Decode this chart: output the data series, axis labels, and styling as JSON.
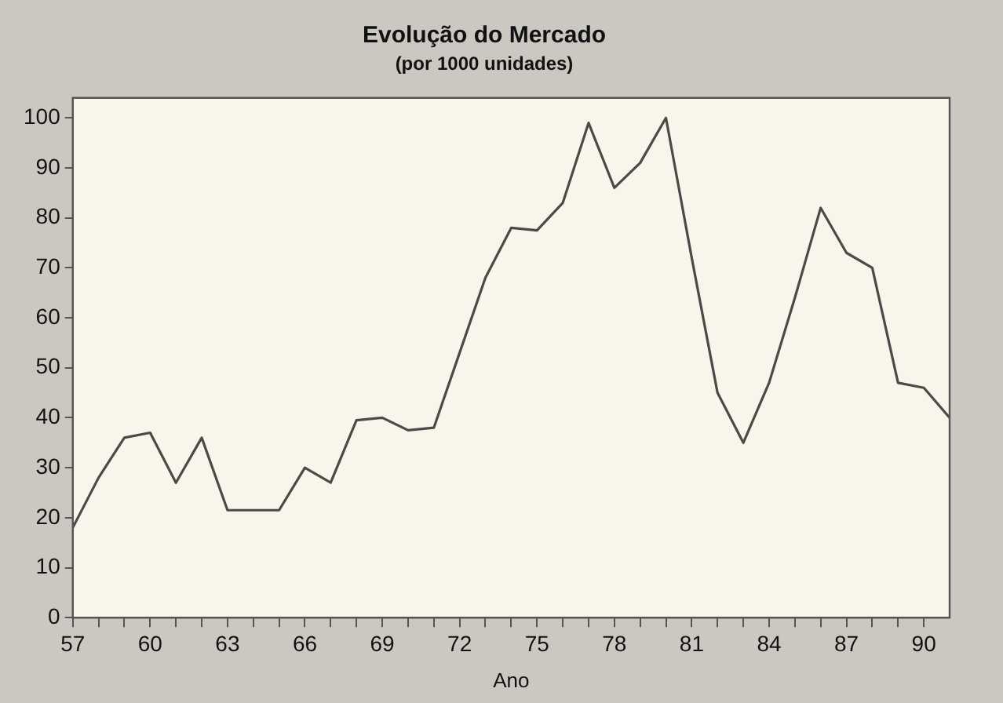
{
  "chart_data": {
    "type": "line",
    "title": "Evolução do Mercado",
    "subtitle": "(por 1000 unidades)",
    "xlabel": "Ano",
    "x": [
      57,
      58,
      59,
      60,
      61,
      62,
      63,
      64,
      65,
      66,
      67,
      68,
      69,
      70,
      71,
      72,
      73,
      74,
      75,
      76,
      77,
      78,
      79,
      80,
      81,
      82,
      83,
      84,
      85,
      86,
      87,
      88,
      89,
      90,
      91
    ],
    "series": [
      {
        "color": "#4a4a48",
        "values": [
          18,
          28,
          36,
          37,
          27,
          36,
          21.5,
          21.5,
          21.5,
          30,
          27,
          39.5,
          40,
          37.5,
          38,
          53,
          68,
          78,
          77.5,
          83,
          99,
          86,
          91,
          100,
          72,
          45,
          35,
          47,
          64,
          82,
          73,
          70,
          47,
          46,
          40
        ]
      }
    ],
    "xlim": [
      57,
      91
    ],
    "ylim": [
      0,
      104
    ],
    "xticks": [
      57,
      {
        "value": 58,
        "label": null
      },
      {
        "value": 59,
        "label": null
      },
      60,
      {
        "value": 61,
        "label": null
      },
      {
        "value": 62,
        "label": null
      },
      63,
      {
        "value": 64,
        "label": null
      },
      {
        "value": 65,
        "label": null
      },
      66,
      {
        "value": 67,
        "label": null
      },
      {
        "value": 68,
        "label": null
      },
      69,
      {
        "value": 70,
        "label": null
      },
      {
        "value": 71,
        "label": null
      },
      72,
      {
        "value": 73,
        "label": null
      },
      {
        "value": 74,
        "label": null
      },
      75,
      {
        "value": 76,
        "label": null
      },
      {
        "value": 77,
        "label": null
      },
      78,
      {
        "value": 79,
        "label": null
      },
      {
        "value": 80,
        "label": null
      },
      81,
      {
        "value": 82,
        "label": null
      },
      {
        "value": 83,
        "label": null
      },
      84,
      {
        "value": 85,
        "label": null
      },
      {
        "value": 86,
        "label": null
      },
      87,
      {
        "value": 88,
        "label": null
      },
      {
        "value": 89,
        "label": null
      },
      90
    ],
    "yticks": [
      0,
      10,
      20,
      30,
      40,
      50,
      60,
      70,
      80,
      90,
      100
    ],
    "grid": false,
    "legend": false,
    "marker": "none",
    "line_style": "solid"
  }
}
